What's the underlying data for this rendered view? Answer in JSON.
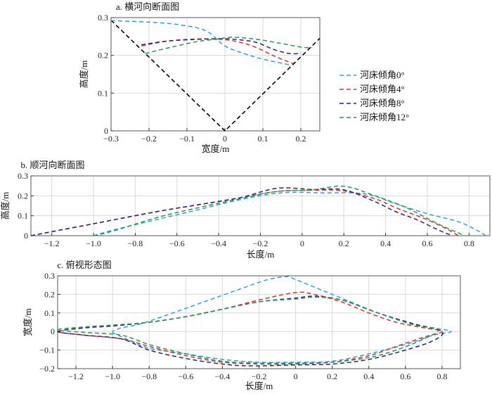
{
  "chart_data": [
    {
      "id": "a",
      "type": "line",
      "title": "a. 横河向断面图",
      "xlabel": "宽度/m",
      "ylabel": "高度/m",
      "xlim": [
        -0.3,
        0.25
      ],
      "ylim": [
        0,
        0.3
      ],
      "xticks": [
        -0.3,
        -0.2,
        -0.1,
        0,
        0.1,
        0.2
      ],
      "xtick_labels": [
        "−0.3",
        "−0.2",
        "−0.1",
        "0",
        "0.1",
        "0.2"
      ],
      "yticks": [
        0,
        0.1,
        0.2,
        0.3
      ],
      "ytick_labels": [
        "0",
        "0.1",
        "0.2",
        "0.3"
      ],
      "grid": true,
      "reference_line": {
        "name": "V-shaped channel",
        "color": "#000000",
        "points": [
          [
            -0.3,
            0.293
          ],
          [
            0,
            0
          ],
          [
            0.25,
            0.245
          ]
        ]
      },
      "series": [
        {
          "name": "河床倾角0°",
          "color": "#29a3dd",
          "points": [
            [
              -0.3,
              0.292
            ],
            [
              -0.2,
              0.288
            ],
            [
              -0.12,
              0.281
            ],
            [
              -0.05,
              0.265
            ],
            [
              0,
              0.225
            ],
            [
              0.05,
              0.205
            ],
            [
              0.1,
              0.19
            ],
            [
              0.17,
              0.175
            ]
          ]
        },
        {
          "name": "河床倾角4°",
          "color": "#e0302a",
          "points": [
            [
              -0.22,
              0.225
            ],
            [
              -0.15,
              0.238
            ],
            [
              -0.08,
              0.243
            ],
            [
              -0.02,
              0.243
            ],
            [
              0.03,
              0.237
            ],
            [
              0.08,
              0.222
            ],
            [
              0.13,
              0.198
            ],
            [
              0.18,
              0.178
            ]
          ]
        },
        {
          "name": "河床倾角8°",
          "color": "#2f1f78",
          "points": [
            [
              -0.22,
              0.228
            ],
            [
              -0.15,
              0.238
            ],
            [
              -0.08,
              0.242
            ],
            [
              -0.02,
              0.244
            ],
            [
              0.02,
              0.243
            ],
            [
              0.08,
              0.235
            ],
            [
              0.13,
              0.215
            ],
            [
              0.17,
              0.205
            ],
            [
              0.2,
              0.205
            ]
          ]
        },
        {
          "name": "河床倾角12°",
          "color": "#229954",
          "points": [
            [
              -0.21,
              0.205
            ],
            [
              -0.14,
              0.222
            ],
            [
              -0.07,
              0.237
            ],
            [
              -0.02,
              0.243
            ],
            [
              0.02,
              0.248
            ],
            [
              0.08,
              0.243
            ],
            [
              0.14,
              0.233
            ],
            [
              0.2,
              0.222
            ],
            [
              0.23,
              0.22
            ]
          ]
        }
      ],
      "legend_position": "right"
    },
    {
      "id": "b",
      "type": "line",
      "title": "b. 顺河向断面图",
      "xlabel": "长度/m",
      "ylabel": "高度/m",
      "xlim": [
        -1.3,
        0.9
      ],
      "ylim": [
        0,
        0.3
      ],
      "xticks": [
        -1.2,
        -1.0,
        -0.8,
        -0.6,
        -0.4,
        -0.2,
        0,
        0.2,
        0.4,
        0.6,
        0.8
      ],
      "xtick_labels": [
        "−1.2",
        "−1.0",
        "−0.8",
        "−0.6",
        "−0.4",
        "−0.2",
        "0",
        "0.2",
        "0.4",
        "0.6",
        "0.8"
      ],
      "yticks": [
        0,
        0.1,
        0.2,
        0.3
      ],
      "ytick_labels": [
        "0",
        "0.1",
        "0.2",
        "0.3"
      ],
      "grid": true,
      "series": [
        {
          "name": "河床倾角0°",
          "color": "#29a3dd",
          "points": [
            [
              -1.0,
              0
            ],
            [
              -0.9,
              0.03
            ],
            [
              -0.7,
              0.08
            ],
            [
              -0.5,
              0.13
            ],
            [
              -0.3,
              0.18
            ],
            [
              -0.1,
              0.215
            ],
            [
              0.1,
              0.215
            ],
            [
              0.3,
              0.21
            ],
            [
              0.45,
              0.16
            ],
            [
              0.6,
              0.11
            ],
            [
              0.75,
              0.07
            ],
            [
              0.85,
              0.02
            ],
            [
              0.88,
              0
            ]
          ]
        },
        {
          "name": "河床倾角4°",
          "color": "#e0302a",
          "points": [
            [
              -1.3,
              0
            ],
            [
              -1.0,
              0.06
            ],
            [
              -0.7,
              0.12
            ],
            [
              -0.5,
              0.155
            ],
            [
              -0.3,
              0.19
            ],
            [
              -0.12,
              0.222
            ],
            [
              0.05,
              0.228
            ],
            [
              0.2,
              0.225
            ],
            [
              0.35,
              0.185
            ],
            [
              0.45,
              0.14
            ],
            [
              0.6,
              0.08
            ],
            [
              0.7,
              0.03
            ],
            [
              0.75,
              0
            ]
          ]
        },
        {
          "name": "河床倾角8°",
          "color": "#2f1f78",
          "points": [
            [
              -1.3,
              0
            ],
            [
              -1.0,
              0.06
            ],
            [
              -0.7,
              0.12
            ],
            [
              -0.5,
              0.155
            ],
            [
              -0.3,
              0.19
            ],
            [
              -0.12,
              0.238
            ],
            [
              0.05,
              0.232
            ],
            [
              0.2,
              0.23
            ],
            [
              0.35,
              0.17
            ],
            [
              0.45,
              0.12
            ],
            [
              0.55,
              0.08
            ],
            [
              0.65,
              0.03
            ],
            [
              0.72,
              0
            ]
          ]
        },
        {
          "name": "河床倾角12°",
          "color": "#229954",
          "points": [
            [
              -1.0,
              0
            ],
            [
              -0.9,
              0.025
            ],
            [
              -0.7,
              0.09
            ],
            [
              -0.5,
              0.14
            ],
            [
              -0.3,
              0.185
            ],
            [
              -0.12,
              0.222
            ],
            [
              0.05,
              0.23
            ],
            [
              0.2,
              0.248
            ],
            [
              0.35,
              0.2
            ],
            [
              0.5,
              0.14
            ],
            [
              0.65,
              0.06
            ],
            [
              0.78,
              0
            ]
          ]
        }
      ]
    },
    {
      "id": "c",
      "type": "line",
      "title": "c. 俯视形态图",
      "xlabel": "长度/m",
      "ylabel": "宽度/m",
      "xlim": [
        -1.3,
        0.9
      ],
      "ylim": [
        -0.2,
        0.3
      ],
      "xticks": [
        -1.2,
        -1.0,
        -0.8,
        -0.6,
        -0.4,
        -0.2,
        0,
        0.2,
        0.4,
        0.6,
        0.8
      ],
      "xtick_labels": [
        "−1.2",
        "−1.0",
        "−0.8",
        "−0.6",
        "−0.4",
        "−0.2",
        "0",
        "0.2",
        "0.4",
        "0.6",
        "0.8"
      ],
      "yticks": [
        -0.2,
        -0.1,
        0,
        0.1,
        0.2,
        0.3
      ],
      "ytick_labels": [
        "−0.2",
        "−0.1",
        "0",
        "0.1",
        "0.2",
        "0.3"
      ],
      "grid": true,
      "series": [
        {
          "name": "河床倾角0°",
          "color": "#29a3dd",
          "closed": true,
          "points": [
            [
              -1.0,
              0
            ],
            [
              -0.97,
              -0.02
            ],
            [
              -0.9,
              -0.05
            ],
            [
              -0.8,
              -0.09
            ],
            [
              -0.6,
              -0.12
            ],
            [
              -0.4,
              -0.15
            ],
            [
              -0.2,
              -0.165
            ],
            [
              0,
              -0.165
            ],
            [
              0.2,
              -0.16
            ],
            [
              0.4,
              -0.12
            ],
            [
              0.6,
              -0.07
            ],
            [
              0.75,
              -0.02
            ],
            [
              0.85,
              0
            ],
            [
              0.75,
              0.02
            ],
            [
              0.6,
              0.05
            ],
            [
              0.45,
              0.1
            ],
            [
              0.3,
              0.16
            ],
            [
              0.15,
              0.22
            ],
            [
              0,
              0.28
            ],
            [
              -0.05,
              0.295
            ],
            [
              -0.15,
              0.28
            ],
            [
              -0.3,
              0.23
            ],
            [
              -0.5,
              0.16
            ],
            [
              -0.7,
              0.09
            ],
            [
              -0.85,
              0.04
            ],
            [
              -0.95,
              0.02
            ],
            [
              -1.0,
              0
            ]
          ]
        },
        {
          "name": "河床倾角4°",
          "color": "#e0302a",
          "closed": true,
          "points": [
            [
              -1.3,
              0
            ],
            [
              -1.15,
              0.02
            ],
            [
              -1.0,
              0.03
            ],
            [
              -0.8,
              0.05
            ],
            [
              -0.6,
              0.08
            ],
            [
              -0.4,
              0.12
            ],
            [
              -0.2,
              0.17
            ],
            [
              0,
              0.21
            ],
            [
              0.1,
              0.2
            ],
            [
              0.25,
              0.16
            ],
            [
              0.4,
              0.1
            ],
            [
              0.55,
              0.05
            ],
            [
              0.7,
              0.02
            ],
            [
              0.8,
              0
            ],
            [
              0.7,
              -0.03
            ],
            [
              0.55,
              -0.08
            ],
            [
              0.4,
              -0.13
            ],
            [
              0.2,
              -0.165
            ],
            [
              0,
              -0.175
            ],
            [
              -0.2,
              -0.175
            ],
            [
              -0.4,
              -0.165
            ],
            [
              -0.6,
              -0.13
            ],
            [
              -0.8,
              -0.08
            ],
            [
              -0.95,
              -0.04
            ],
            [
              -1.15,
              -0.02
            ],
            [
              -1.3,
              0
            ]
          ]
        },
        {
          "name": "河床倾角8°",
          "color": "#2f1f78",
          "closed": true,
          "points": [
            [
              -1.3,
              0
            ],
            [
              -1.15,
              0.02
            ],
            [
              -1.0,
              0.03
            ],
            [
              -0.8,
              0.05
            ],
            [
              -0.6,
              0.08
            ],
            [
              -0.4,
              0.12
            ],
            [
              -0.2,
              0.16
            ],
            [
              0,
              0.18
            ],
            [
              0.1,
              0.19
            ],
            [
              0.25,
              0.17
            ],
            [
              0.45,
              0.1
            ],
            [
              0.65,
              0.04
            ],
            [
              0.8,
              0
            ],
            [
              0.75,
              -0.05
            ],
            [
              0.6,
              -0.1
            ],
            [
              0.4,
              -0.15
            ],
            [
              0.2,
              -0.175
            ],
            [
              0,
              -0.18
            ],
            [
              -0.25,
              -0.185
            ],
            [
              -0.4,
              -0.175
            ],
            [
              -0.6,
              -0.145
            ],
            [
              -0.8,
              -0.1
            ],
            [
              -0.95,
              -0.04
            ],
            [
              -1.15,
              -0.02
            ],
            [
              -1.3,
              0
            ]
          ]
        },
        {
          "name": "河床倾角12°",
          "color": "#229954",
          "closed": true,
          "points": [
            [
              -1.3,
              0.01
            ],
            [
              -1.15,
              0.025
            ],
            [
              -1.0,
              0.035
            ],
            [
              -0.8,
              0.05
            ],
            [
              -0.6,
              0.08
            ],
            [
              -0.4,
              0.12
            ],
            [
              -0.2,
              0.16
            ],
            [
              0,
              0.175
            ],
            [
              0.1,
              0.185
            ],
            [
              0.25,
              0.17
            ],
            [
              0.45,
              0.1
            ],
            [
              0.65,
              0.035
            ],
            [
              0.78,
              0.01
            ],
            [
              0.7,
              -0.04
            ],
            [
              0.55,
              -0.1
            ],
            [
              0.4,
              -0.14
            ],
            [
              0.2,
              -0.165
            ],
            [
              0,
              -0.17
            ],
            [
              -0.2,
              -0.17
            ],
            [
              -0.4,
              -0.16
            ],
            [
              -0.6,
              -0.12
            ],
            [
              -0.8,
              -0.07
            ],
            [
              -0.95,
              -0.02
            ],
            [
              -1.15,
              -0.005
            ],
            [
              -1.3,
              0.01
            ]
          ]
        }
      ]
    }
  ]
}
